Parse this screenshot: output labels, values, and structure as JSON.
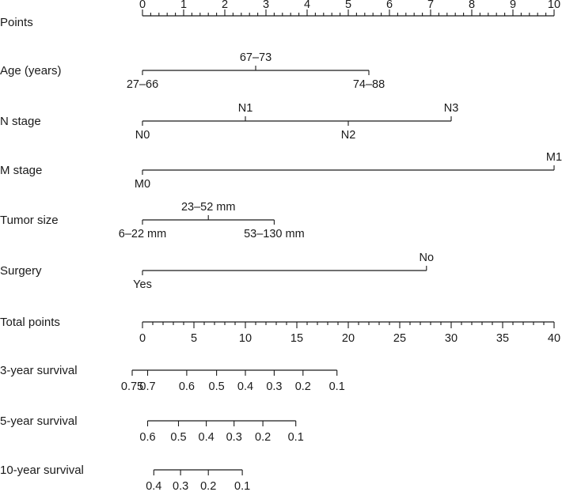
{
  "chart_data": {
    "type": "nomogram",
    "points_axis": {
      "label": "Points",
      "min": 0,
      "max": 10,
      "major_step": 1,
      "minor_step": 0.2,
      "ticks": [
        "0",
        "1",
        "2",
        "3",
        "4",
        "5",
        "6",
        "7",
        "8",
        "9",
        "10"
      ]
    },
    "variables": [
      {
        "label": "Age (years)",
        "levels": [
          {
            "text": "27–66",
            "points": 0,
            "side": "below"
          },
          {
            "text": "67–73",
            "points": 2.75,
            "side": "above"
          },
          {
            "text": "74–88",
            "points": 5.5,
            "side": "below"
          }
        ]
      },
      {
        "label": "N stage",
        "levels": [
          {
            "text": "N0",
            "points": 0,
            "side": "below"
          },
          {
            "text": "N1",
            "points": 2.5,
            "side": "above"
          },
          {
            "text": "N2",
            "points": 5,
            "side": "below"
          },
          {
            "text": "N3",
            "points": 7.5,
            "side": "above"
          }
        ]
      },
      {
        "label": "M stage",
        "levels": [
          {
            "text": "M0",
            "points": 0,
            "side": "below"
          },
          {
            "text": "M1",
            "points": 10,
            "side": "above"
          }
        ]
      },
      {
        "label": "Tumor size",
        "levels": [
          {
            "text": "6–22 mm",
            "points": 0,
            "side": "below"
          },
          {
            "text": "23–52 mm",
            "points": 1.6,
            "side": "above"
          },
          {
            "text": "53–130 mm",
            "points": 3.2,
            "side": "below"
          }
        ]
      },
      {
        "label": "Surgery",
        "levels": [
          {
            "text": "Yes",
            "points": 0,
            "side": "below"
          },
          {
            "text": "No",
            "points": 6.9,
            "side": "above"
          }
        ]
      }
    ],
    "total_points_axis": {
      "label": "Total points",
      "min": 0,
      "max": 40,
      "major_step": 5,
      "minor_step": 1,
      "ticks": [
        "0",
        "5",
        "10",
        "15",
        "20",
        "25",
        "30",
        "35",
        "40"
      ]
    },
    "survival_axes": [
      {
        "label": "3-year survival",
        "ticks": [
          {
            "text": "0.75",
            "total_points": -1.0
          },
          {
            "text": "0.7",
            "total_points": 0.5
          },
          {
            "text": "0.6",
            "total_points": 4.3
          },
          {
            "text": "0.5",
            "total_points": 7.2
          },
          {
            "text": "0.4",
            "total_points": 10.0
          },
          {
            "text": "0.3",
            "total_points": 12.8
          },
          {
            "text": "0.2",
            "total_points": 15.6
          },
          {
            "text": "0.1",
            "total_points": 18.9
          }
        ]
      },
      {
        "label": "5-year survival",
        "ticks": [
          {
            "text": "0.6",
            "total_points": 0.5
          },
          {
            "text": "0.5",
            "total_points": 3.5
          },
          {
            "text": "0.4",
            "total_points": 6.2
          },
          {
            "text": "0.3",
            "total_points": 8.9
          },
          {
            "text": "0.2",
            "total_points": 11.7
          },
          {
            "text": "0.1",
            "total_points": 14.9
          }
        ]
      },
      {
        "label": "10-year survival",
        "ticks": [
          {
            "text": "0.4",
            "total_points": 1.1
          },
          {
            "text": "0.3",
            "total_points": 3.7
          },
          {
            "text": "0.2",
            "total_points": 6.4
          },
          {
            "text": "0.1",
            "total_points": 9.7
          }
        ]
      }
    ]
  }
}
